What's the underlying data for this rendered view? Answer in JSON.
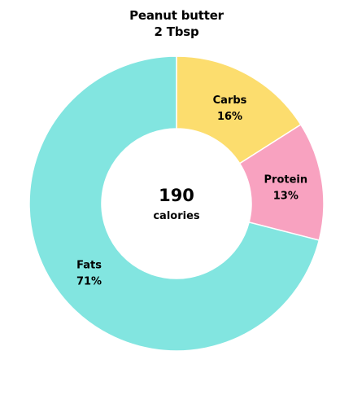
{
  "chart_data": {
    "type": "donut",
    "title": "Peanut butter",
    "subtitle": "2 Tbsp",
    "center_value": "190",
    "center_label": "calories",
    "categories": [
      "Carbs",
      "Protein",
      "Fats"
    ],
    "values": [
      16,
      13,
      71
    ],
    "value_labels": [
      "16%",
      "13%",
      "71%"
    ],
    "colors": [
      "#fcdd6e",
      "#f8a2c0",
      "#82e5e0"
    ]
  }
}
